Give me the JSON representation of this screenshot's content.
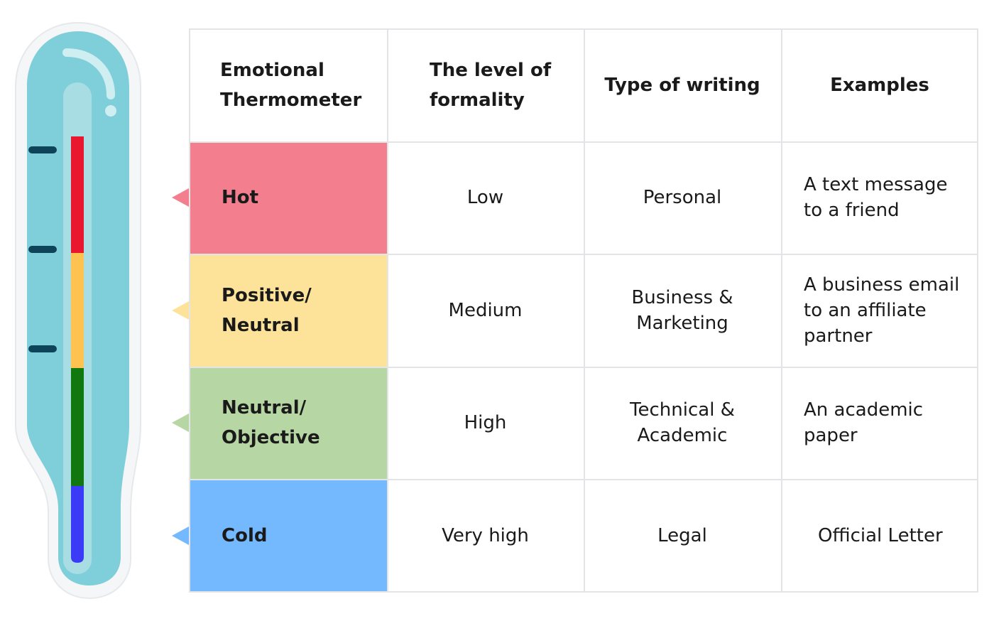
{
  "table": {
    "headers": [
      [
        "Emotional",
        "Thermometer"
      ],
      [
        "The level of",
        "formality"
      ],
      [
        "Type of writing"
      ],
      [
        "Examples"
      ]
    ],
    "rows": [
      {
        "level": [
          "Hot"
        ],
        "formality": [
          "Low"
        ],
        "writing": [
          "Personal"
        ],
        "example": [
          "A text message",
          "to a friend"
        ],
        "color": "#f27e8e"
      },
      {
        "level": [
          "Positive/",
          "Neutral"
        ],
        "formality": [
          "Medium"
        ],
        "writing": [
          "Business &",
          "Marketing"
        ],
        "example": [
          "A business email",
          "to an affiliate",
          "partner"
        ],
        "color": "#fde39a"
      },
      {
        "level": [
          "Neutral/",
          "Objective"
        ],
        "formality": [
          "High"
        ],
        "writing": [
          "Technical &",
          "Academic"
        ],
        "example": [
          "An academic",
          "paper"
        ],
        "color": "#b6d6a3"
      },
      {
        "level": [
          "Cold"
        ],
        "formality": [
          "Very high"
        ],
        "writing": [
          "Legal"
        ],
        "example": [
          "Official Letter"
        ],
        "color": "#74b8fd"
      }
    ]
  },
  "thermometer": {
    "body_color": "#7fcfdb",
    "tick_color": "#0e4459",
    "segments": [
      "#e8172f",
      "#fdc24f",
      "#11780f",
      "#3a3af7"
    ]
  }
}
